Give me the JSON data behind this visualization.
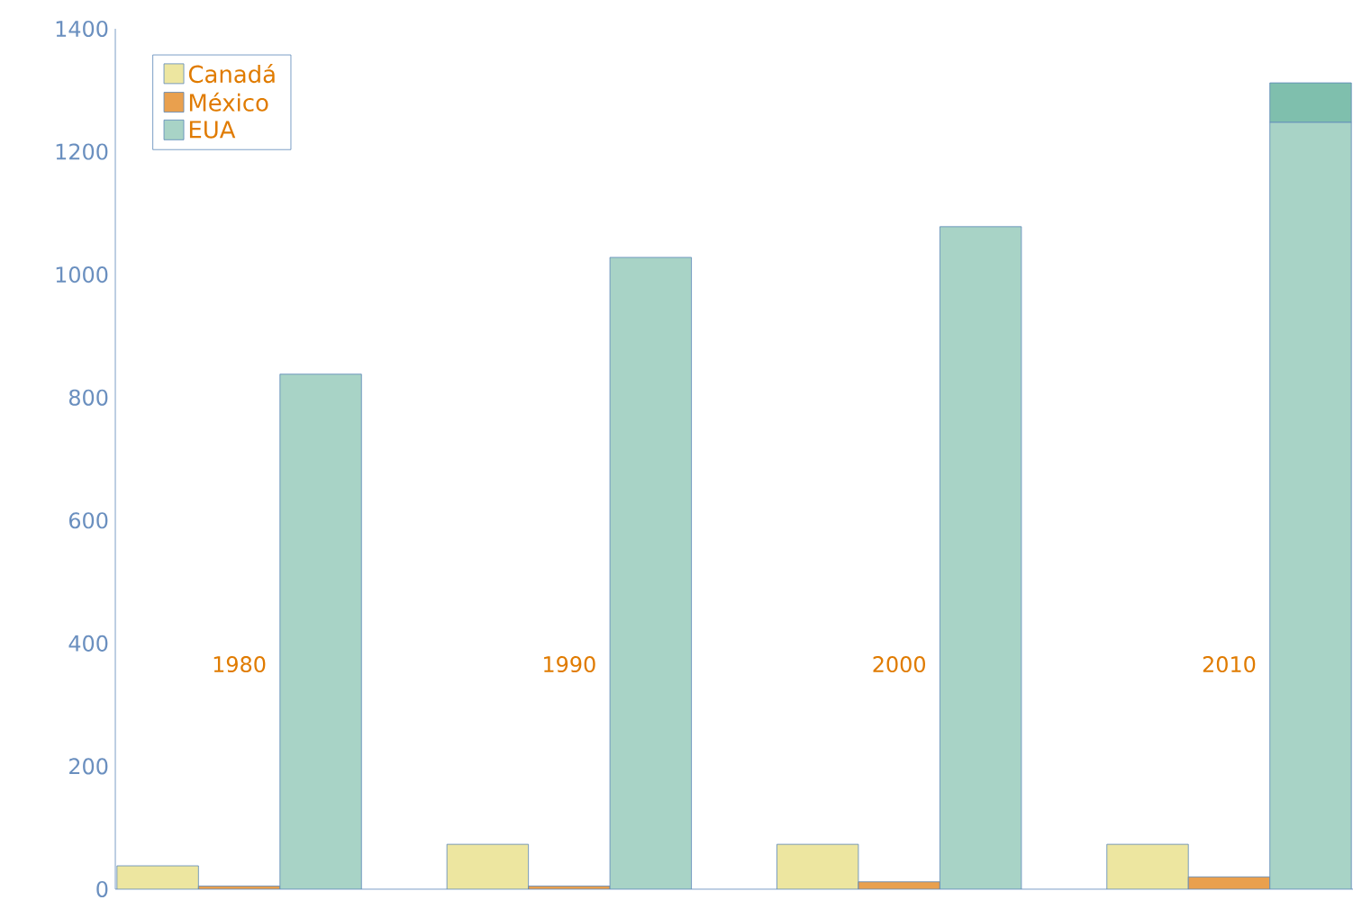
{
  "chart_data": {
    "type": "bar",
    "categories": [
      "1980",
      "1990",
      "2000",
      "2010"
    ],
    "series": [
      {
        "name": "Canadá",
        "color": "#ede6a0",
        "values": [
          38,
          73,
          73,
          73
        ]
      },
      {
        "name": "México",
        "color": "#e9a04e",
        "values": [
          5,
          5,
          12,
          20
        ]
      },
      {
        "name": "EUA",
        "color": "#a8d3c6",
        "values": [
          838,
          1028,
          1078,
          1248
        ]
      },
      {
        "color": "#7fbfad",
        "values": [
          null,
          null,
          null,
          64
        ],
        "base": [
          null,
          null,
          null,
          1248
        ]
      }
    ],
    "ylim": [
      0,
      1400
    ],
    "yticks": [
      0,
      200,
      400,
      600,
      800,
      1000,
      1200,
      1400
    ],
    "legend": "top left",
    "grid": false
  }
}
